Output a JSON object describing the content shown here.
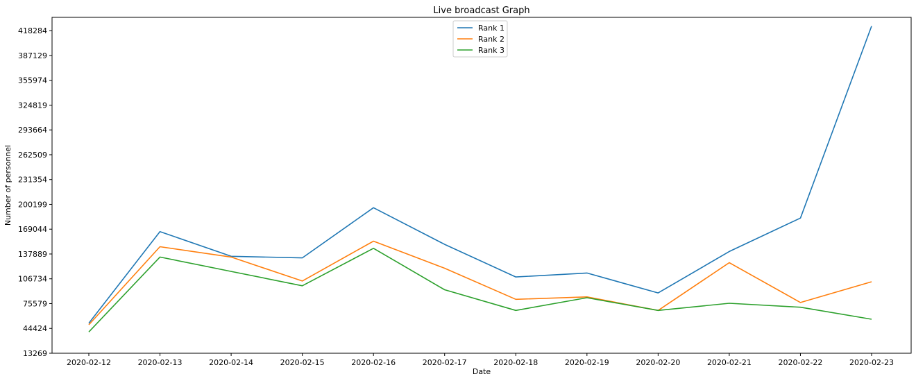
{
  "chart_data": {
    "type": "line",
    "title": "Live broadcast Graph",
    "xlabel": "Date",
    "ylabel": "Number of personnel",
    "categories": [
      "2020-02-12",
      "2020-02-13",
      "2020-02-14",
      "2020-02-15",
      "2020-02-16",
      "2020-02-17",
      "2020-02-18",
      "2020-02-19",
      "2020-02-20",
      "2020-02-21",
      "2020-02-22",
      "2020-02-23"
    ],
    "y_ticks": [
      13269,
      44424,
      75579,
      106734,
      137889,
      169044,
      200199,
      231354,
      262509,
      293664,
      324819,
      355974,
      387129,
      418284
    ],
    "ylim": [
      13269,
      435000
    ],
    "legend_position": "top-center",
    "grid": false,
    "series": [
      {
        "name": "Rank 1",
        "color": "#1f77b4",
        "values": [
          51000,
          166000,
          135000,
          133000,
          196000,
          150000,
          109000,
          114000,
          89000,
          141000,
          183000,
          424000
        ]
      },
      {
        "name": "Rank 2",
        "color": "#ff7f0e",
        "values": [
          49000,
          147000,
          134000,
          104000,
          154000,
          120000,
          81000,
          84000,
          67000,
          127000,
          77000,
          103000
        ]
      },
      {
        "name": "Rank 3",
        "color": "#2ca02c",
        "values": [
          40000,
          134000,
          116000,
          98000,
          145000,
          93000,
          67000,
          83000,
          67000,
          76000,
          71000,
          56000
        ]
      }
    ]
  }
}
